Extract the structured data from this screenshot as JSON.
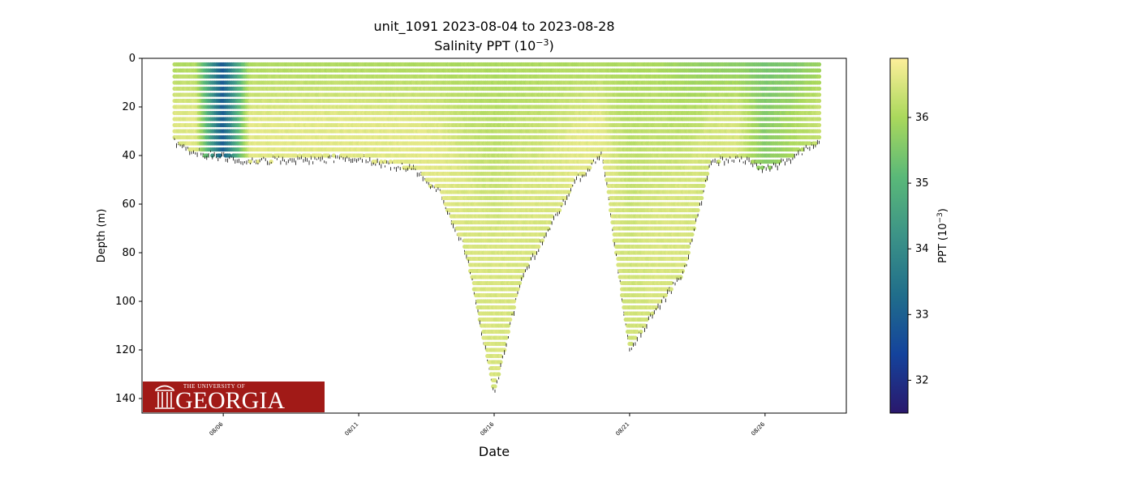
{
  "chart_data": {
    "type": "scatter",
    "title": "unit_1091 2023-08-04 to 2023-08-28",
    "subtitle_prefix": "Salinity PPT (10",
    "subtitle_exp": "−3",
    "subtitle_suffix": ")",
    "xlabel": "Date",
    "ylabel": "Depth (m)",
    "x_ticks": [
      "08/06",
      "08/11",
      "08/16",
      "08/21",
      "08/26"
    ],
    "x_range": [
      "2023-08-03",
      "2023-08-29"
    ],
    "y_ticks": [
      0,
      20,
      40,
      60,
      80,
      100,
      120,
      140
    ],
    "ylim": [
      146,
      0
    ],
    "y_inverted": true,
    "colorbar": {
      "label_prefix": "PPT (10",
      "label_exp": "−3",
      "label_suffix": ")",
      "ticks": [
        32,
        33,
        34,
        35,
        36
      ],
      "range": [
        31.5,
        36.9
      ],
      "colormap": "haline",
      "stops": [
        "#2a186c",
        "#14439c",
        "#206e8b",
        "#3c9387",
        "#5ab978",
        "#aad85c",
        "#fdef9a"
      ]
    },
    "bathymetry_color": "#000000",
    "profiles": [
      {
        "date": "2023-08-04",
        "top": 3,
        "bottom": 33,
        "surface_salinity": 36.0,
        "deep_salinity": 36.5
      },
      {
        "date": "2023-08-05",
        "top": 3,
        "bottom": 38,
        "surface_salinity": 36.0,
        "deep_salinity": 36.6
      },
      {
        "date": "2023-08-06",
        "top": 3,
        "bottom": 40,
        "surface_salinity": 32.8,
        "deep_salinity": 32.9
      },
      {
        "date": "2023-08-07",
        "top": 3,
        "bottom": 42,
        "surface_salinity": 36.0,
        "deep_salinity": 36.6
      },
      {
        "date": "2023-08-08",
        "top": 3,
        "bottom": 41,
        "surface_salinity": 36.0,
        "deep_salinity": 36.6
      },
      {
        "date": "2023-08-09",
        "top": 3,
        "bottom": 41,
        "surface_salinity": 36.0,
        "deep_salinity": 36.6
      },
      {
        "date": "2023-08-10",
        "top": 3,
        "bottom": 41,
        "surface_salinity": 36.0,
        "deep_salinity": 36.6
      },
      {
        "date": "2023-08-11",
        "top": 3,
        "bottom": 40,
        "surface_salinity": 36.0,
        "deep_salinity": 36.6
      },
      {
        "date": "2023-08-12",
        "top": 3,
        "bottom": 43,
        "surface_salinity": 36.0,
        "deep_salinity": 36.6
      },
      {
        "date": "2023-08-13",
        "top": 3,
        "bottom": 45,
        "surface_salinity": 36.0,
        "deep_salinity": 36.6
      },
      {
        "date": "2023-08-14",
        "top": 3,
        "bottom": 55,
        "surface_salinity": 36.0,
        "deep_salinity": 36.6
      },
      {
        "date": "2023-08-15",
        "top": 3,
        "bottom": 80,
        "surface_salinity": 36.0,
        "deep_salinity": 36.5
      },
      {
        "date": "2023-08-16",
        "top": 3,
        "bottom": 138,
        "surface_salinity": 36.0,
        "deep_salinity": 36.5
      },
      {
        "date": "2023-08-17",
        "top": 3,
        "bottom": 90,
        "surface_salinity": 36.0,
        "deep_salinity": 36.5
      },
      {
        "date": "2023-08-18",
        "top": 3,
        "bottom": 70,
        "surface_salinity": 36.0,
        "deep_salinity": 36.5
      },
      {
        "date": "2023-08-19",
        "top": 3,
        "bottom": 50,
        "surface_salinity": 36.0,
        "deep_salinity": 36.6
      },
      {
        "date": "2023-08-20",
        "top": 3,
        "bottom": 39,
        "surface_salinity": 36.0,
        "deep_salinity": 36.6
      },
      {
        "date": "2023-08-21",
        "top": 3,
        "bottom": 120,
        "surface_salinity": 36.0,
        "deep_salinity": 36.4
      },
      {
        "date": "2023-08-22",
        "top": 3,
        "bottom": 102,
        "surface_salinity": 36.0,
        "deep_salinity": 36.5
      },
      {
        "date": "2023-08-23",
        "top": 3,
        "bottom": 88,
        "surface_salinity": 35.8,
        "deep_salinity": 36.5
      },
      {
        "date": "2023-08-24",
        "top": 3,
        "bottom": 42,
        "surface_salinity": 35.6,
        "deep_salinity": 36.4
      },
      {
        "date": "2023-08-25",
        "top": 3,
        "bottom": 40,
        "surface_salinity": 35.6,
        "deep_salinity": 36.5
      },
      {
        "date": "2023-08-26",
        "top": 3,
        "bottom": 45,
        "surface_salinity": 35.4,
        "deep_salinity": 35.6
      },
      {
        "date": "2023-08-27",
        "top": 3,
        "bottom": 40,
        "surface_salinity": 35.4,
        "deep_salinity": 36.0
      },
      {
        "date": "2023-08-28",
        "top": 3,
        "bottom": 34,
        "surface_salinity": 35.8,
        "deep_salinity": 36.3
      }
    ]
  },
  "logo": {
    "small_text": "THE UNIVERSITY OF",
    "big_text": "GEORGIA",
    "background": "#a11a17"
  }
}
